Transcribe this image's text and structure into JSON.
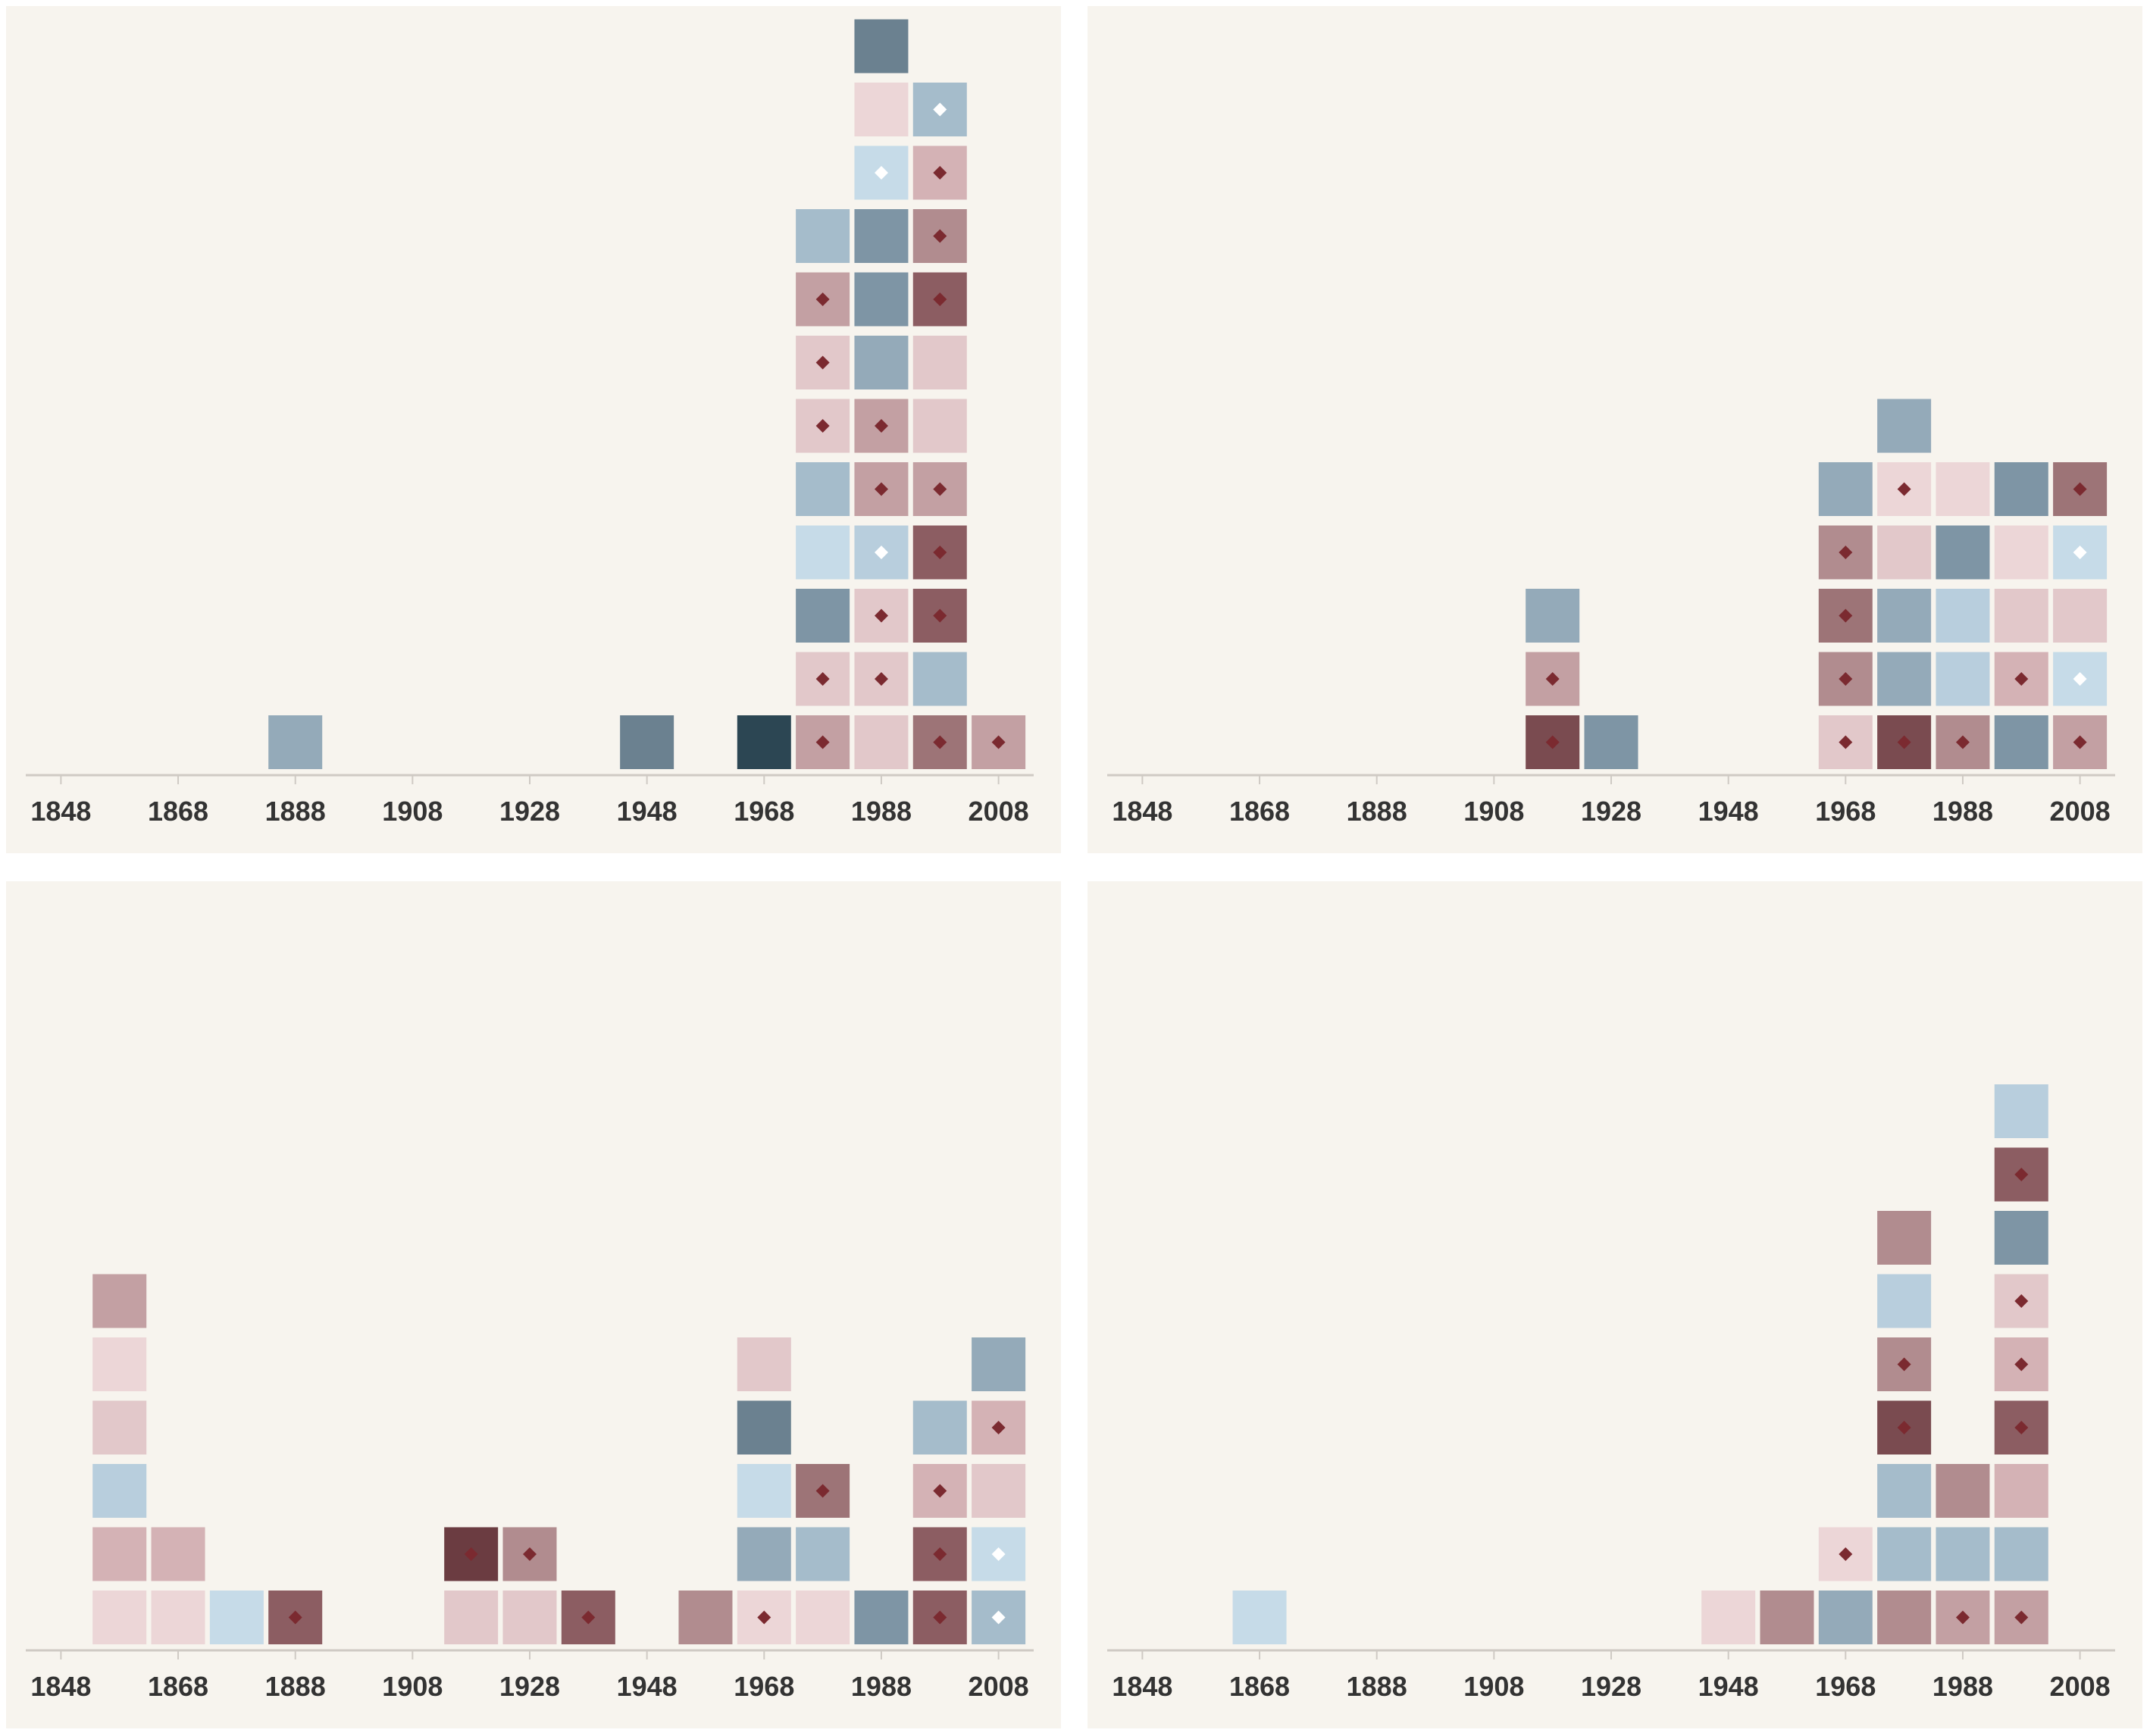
{
  "colors": {
    "background": "#f7f4ee",
    "axis": "#cfcac4",
    "tick_label": "#333333",
    "marker_dark": "#7b2a30",
    "marker_light": "#ffffff",
    "palette": {
      "b1": "#c6dbe8",
      "b2": "#b8cedd",
      "b3": "#a5bccb",
      "b4": "#94aab9",
      "b5": "#7e95a5",
      "b6": "#6b8190",
      "b7": "#2c4653",
      "r1": "#ecd6d7",
      "r2": "#e2c8ca",
      "r3": "#d4b2b5",
      "r4": "#c3a0a3",
      "r5": "#b18c8f",
      "r6": "#9d7477",
      "r7": "#8c5d62",
      "r8": "#7a4b50",
      "r9": "#6b3c41"
    }
  },
  "chart_data": [
    {
      "type": "stacked-square-histogram",
      "panel": "top-left",
      "x_ticks": [
        "1848",
        "1868",
        "1888",
        "1908",
        "1928",
        "1948",
        "1968",
        "1988",
        "2008"
      ],
      "xlim": [
        1842,
        2014
      ],
      "bin_width": 10,
      "columns": [
        {
          "x": 1888,
          "cells": [
            {
              "c": "b4"
            }
          ]
        },
        {
          "x": 1948,
          "cells": [
            {
              "c": "b6"
            }
          ]
        },
        {
          "x": 1968,
          "cells": [
            {
              "c": "b7"
            }
          ]
        },
        {
          "x": 1978,
          "cells": [
            {
              "c": "r4",
              "m": "dark"
            },
            {
              "c": "r2",
              "m": "dark"
            },
            {
              "c": "b5"
            },
            {
              "c": "b1"
            },
            {
              "c": "b3"
            },
            {
              "c": "r2",
              "m": "dark"
            },
            {
              "c": "r2",
              "m": "dark"
            },
            {
              "c": "r4",
              "m": "dark"
            },
            {
              "c": "b3"
            }
          ]
        },
        {
          "x": 1988,
          "cells": [
            {
              "c": "r2"
            },
            {
              "c": "r2",
              "m": "dark"
            },
            {
              "c": "r2",
              "m": "dark"
            },
            {
              "c": "b2",
              "m": "light"
            },
            {
              "c": "r4",
              "m": "dark"
            },
            {
              "c": "r4",
              "m": "dark"
            },
            {
              "c": "b4"
            },
            {
              "c": "b5"
            },
            {
              "c": "b5"
            },
            {
              "c": "b1",
              "m": "light"
            },
            {
              "c": "r1"
            },
            {
              "c": "b6"
            }
          ]
        },
        {
          "x": 1998,
          "cells": [
            {
              "c": "r6",
              "m": "dark"
            },
            {
              "c": "b3"
            },
            {
              "c": "r7",
              "m": "dark"
            },
            {
              "c": "r7",
              "m": "dark"
            },
            {
              "c": "r4",
              "m": "dark"
            },
            {
              "c": "r2"
            },
            {
              "c": "r2"
            },
            {
              "c": "r7",
              "m": "dark"
            },
            {
              "c": "r5",
              "m": "dark"
            },
            {
              "c": "r3",
              "m": "dark"
            },
            {
              "c": "b3",
              "m": "light"
            }
          ]
        },
        {
          "x": 2008,
          "cells": [
            {
              "c": "r4",
              "m": "dark"
            }
          ]
        }
      ]
    },
    {
      "type": "stacked-square-histogram",
      "panel": "top-right",
      "x_ticks": [
        "1848",
        "1868",
        "1888",
        "1908",
        "1928",
        "1948",
        "1968",
        "1988",
        "2008"
      ],
      "xlim": [
        1842,
        2014
      ],
      "bin_width": 10,
      "columns": [
        {
          "x": 1918,
          "cells": [
            {
              "c": "r8",
              "m": "dark"
            },
            {
              "c": "r4",
              "m": "dark"
            },
            {
              "c": "b4"
            }
          ]
        },
        {
          "x": 1928,
          "cells": [
            {
              "c": "b5"
            }
          ]
        },
        {
          "x": 1968,
          "cells": [
            {
              "c": "r2",
              "m": "dark"
            },
            {
              "c": "r5",
              "m": "dark"
            },
            {
              "c": "r6",
              "m": "dark"
            },
            {
              "c": "r5",
              "m": "dark"
            },
            {
              "c": "b4"
            }
          ]
        },
        {
          "x": 1978,
          "cells": [
            {
              "c": "r8",
              "m": "dark"
            },
            {
              "c": "b4"
            },
            {
              "c": "b4"
            },
            {
              "c": "r2"
            },
            {
              "c": "r1",
              "m": "dark"
            },
            {
              "c": "b4"
            }
          ]
        },
        {
          "x": 1988,
          "cells": [
            {
              "c": "r5",
              "m": "dark"
            },
            {
              "c": "b2"
            },
            {
              "c": "b2"
            },
            {
              "c": "b5"
            },
            {
              "c": "r1"
            }
          ]
        },
        {
          "x": 1998,
          "cells": [
            {
              "c": "b5"
            },
            {
              "c": "r3",
              "m": "dark"
            },
            {
              "c": "r2"
            },
            {
              "c": "r1"
            },
            {
              "c": "b5"
            }
          ]
        },
        {
          "x": 2008,
          "cells": [
            {
              "c": "r4",
              "m": "dark"
            },
            {
              "c": "b1",
              "m": "light"
            },
            {
              "c": "r2"
            },
            {
              "c": "b1",
              "m": "light"
            },
            {
              "c": "r6",
              "m": "dark"
            }
          ]
        }
      ]
    },
    {
      "type": "stacked-square-histogram",
      "panel": "bottom-left",
      "x_ticks": [
        "1848",
        "1868",
        "1888",
        "1908",
        "1928",
        "1948",
        "1968",
        "1988",
        "2008"
      ],
      "xlim": [
        1842,
        2014
      ],
      "bin_width": 10,
      "columns": [
        {
          "x": 1858,
          "cells": [
            {
              "c": "r1"
            },
            {
              "c": "r3"
            },
            {
              "c": "b2"
            },
            {
              "c": "r2"
            },
            {
              "c": "r1"
            },
            {
              "c": "r4"
            }
          ]
        },
        {
          "x": 1868,
          "cells": [
            {
              "c": "r1"
            },
            {
              "c": "r3"
            }
          ]
        },
        {
          "x": 1878,
          "cells": [
            {
              "c": "b1"
            }
          ]
        },
        {
          "x": 1888,
          "cells": [
            {
              "c": "r7",
              "m": "dark"
            }
          ]
        },
        {
          "x": 1918,
          "cells": [
            {
              "c": "r2"
            },
            {
              "c": "r9",
              "m": "dark"
            }
          ]
        },
        {
          "x": 1928,
          "cells": [
            {
              "c": "r2"
            },
            {
              "c": "r5",
              "m": "dark"
            }
          ]
        },
        {
          "x": 1938,
          "cells": [
            {
              "c": "r7",
              "m": "dark"
            }
          ]
        },
        {
          "x": 1958,
          "cells": [
            {
              "c": "r5"
            }
          ]
        },
        {
          "x": 1968,
          "cells": [
            {
              "c": "r1",
              "m": "dark"
            },
            {
              "c": "b4"
            },
            {
              "c": "b1"
            },
            {
              "c": "b6"
            },
            {
              "c": "r2"
            }
          ]
        },
        {
          "x": 1978,
          "cells": [
            {
              "c": "r1"
            },
            {
              "c": "b3"
            },
            {
              "c": "r6",
              "m": "dark"
            }
          ]
        },
        {
          "x": 1988,
          "cells": [
            {
              "c": "b5"
            }
          ]
        },
        {
          "x": 1998,
          "cells": [
            {
              "c": "r7",
              "m": "dark"
            },
            {
              "c": "r7",
              "m": "dark"
            },
            {
              "c": "r3",
              "m": "dark"
            },
            {
              "c": "b3"
            }
          ]
        },
        {
          "x": 2008,
          "cells": [
            {
              "c": "b3",
              "m": "light"
            },
            {
              "c": "b1",
              "m": "light"
            },
            {
              "c": "r2"
            },
            {
              "c": "r3",
              "m": "dark"
            },
            {
              "c": "b4"
            }
          ]
        }
      ]
    },
    {
      "type": "stacked-square-histogram",
      "panel": "bottom-right",
      "x_ticks": [
        "1848",
        "1868",
        "1888",
        "1908",
        "1928",
        "1948",
        "1968",
        "1988",
        "2008"
      ],
      "xlim": [
        1842,
        2014
      ],
      "bin_width": 10,
      "columns": [
        {
          "x": 1868,
          "cells": [
            {
              "c": "b1"
            }
          ]
        },
        {
          "x": 1948,
          "cells": [
            {
              "c": "r1"
            }
          ]
        },
        {
          "x": 1958,
          "cells": [
            {
              "c": "r5"
            }
          ]
        },
        {
          "x": 1968,
          "cells": [
            {
              "c": "b4"
            },
            {
              "c": "r1",
              "m": "dark"
            }
          ]
        },
        {
          "x": 1978,
          "cells": [
            {
              "c": "r5"
            },
            {
              "c": "b3"
            },
            {
              "c": "b3"
            },
            {
              "c": "r8",
              "m": "dark"
            },
            {
              "c": "r5",
              "m": "dark"
            },
            {
              "c": "b2"
            },
            {
              "c": "r5"
            }
          ]
        },
        {
          "x": 1988,
          "cells": [
            {
              "c": "r4",
              "m": "dark"
            },
            {
              "c": "b3"
            },
            {
              "c": "r5"
            }
          ]
        },
        {
          "x": 1998,
          "cells": [
            {
              "c": "r4",
              "m": "dark"
            },
            {
              "c": "b3"
            },
            {
              "c": "r3"
            },
            {
              "c": "r7",
              "m": "dark"
            },
            {
              "c": "r3",
              "m": "dark"
            },
            {
              "c": "r2",
              "m": "dark"
            },
            {
              "c": "b5"
            },
            {
              "c": "r7",
              "m": "dark"
            },
            {
              "c": "b2"
            }
          ]
        }
      ]
    }
  ]
}
